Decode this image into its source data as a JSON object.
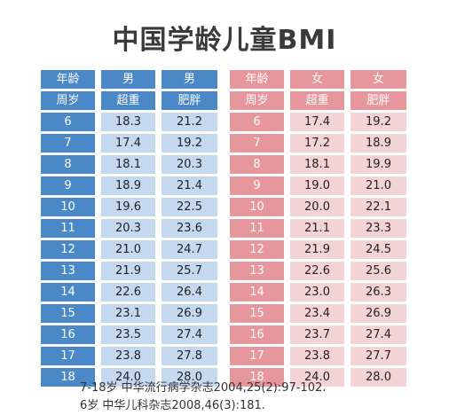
{
  "title": "中国学龄儿童BMI",
  "boys": {
    "header1": [
      "年龄",
      "男",
      "男"
    ],
    "header2": [
      "周岁",
      "超重",
      "肥胖"
    ]
  },
  "girls": {
    "header1": [
      "年龄",
      "女",
      "女"
    ],
    "header2": [
      "周岁",
      "超重",
      "肥胖"
    ]
  },
  "rows": [
    {
      "age": "6",
      "boy_over": "18.3",
      "boy_obese": "21.2",
      "girl_over": "17.4",
      "girl_obese": "19.2"
    },
    {
      "age": "7",
      "boy_over": "17.4",
      "boy_obese": "19.2",
      "girl_over": "17.2",
      "girl_obese": "18.9"
    },
    {
      "age": "8",
      "boy_over": "18.1",
      "boy_obese": "20.3",
      "girl_over": "18.1",
      "girl_obese": "19.9"
    },
    {
      "age": "9",
      "boy_over": "18.9",
      "boy_obese": "21.4",
      "girl_over": "19.0",
      "girl_obese": "21.0"
    },
    {
      "age": "10",
      "boy_over": "19.6",
      "boy_obese": "22.5",
      "girl_over": "20.0",
      "girl_obese": "22.1"
    },
    {
      "age": "11",
      "boy_over": "20.3",
      "boy_obese": "23.6",
      "girl_over": "21.1",
      "girl_obese": "23.3"
    },
    {
      "age": "12",
      "boy_over": "21.0",
      "boy_obese": "24.7",
      "girl_over": "21.9",
      "girl_obese": "24.5"
    },
    {
      "age": "13",
      "boy_over": "21.9",
      "boy_obese": "25.7",
      "girl_over": "22.6",
      "girl_obese": "25.6"
    },
    {
      "age": "14",
      "boy_over": "22.6",
      "boy_obese": "26.4",
      "girl_over": "23.0",
      "girl_obese": "26.3"
    },
    {
      "age": "15",
      "boy_over": "23.1",
      "boy_obese": "26.9",
      "girl_over": "23.4",
      "girl_obese": "26.9"
    },
    {
      "age": "16",
      "boy_over": "23.5",
      "boy_obese": "27.4",
      "girl_over": "23.7",
      "girl_obese": "27.4"
    },
    {
      "age": "17",
      "boy_over": "23.8",
      "boy_obese": "27.8",
      "girl_over": "23.8",
      "girl_obese": "27.7"
    },
    {
      "age": "18",
      "boy_over": "24.0",
      "boy_obese": "28.0",
      "girl_over": "24.0",
      "girl_obese": "28.0"
    }
  ],
  "references": [
    "7-18岁  中华流行病学杂志2004,25(2):97-102.",
    "6岁  中华儿科杂志2008,46(3):181."
  ],
  "colors": {
    "boy_header": "#4a88c7",
    "boy_cell": "#c4d9ef",
    "girl_header": "#e7969c",
    "girl_cell": "#f3d3d5"
  }
}
